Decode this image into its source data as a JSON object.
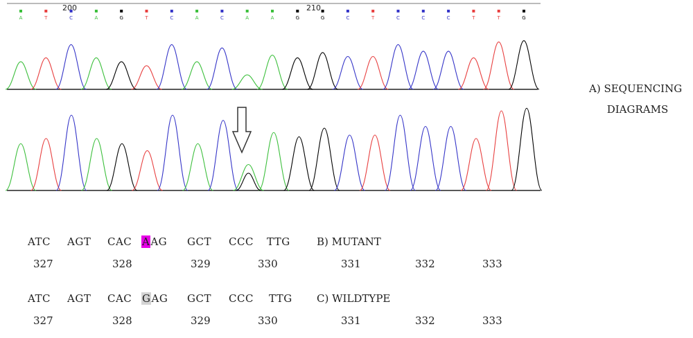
{
  "trace": {
    "top_ruler": {
      "positions": [
        "200",
        "210"
      ],
      "bases": [
        "A",
        "T",
        "C",
        "A",
        "G",
        "T",
        "C",
        "A",
        "C",
        "A",
        "A",
        "G",
        "G",
        "C",
        "T",
        "C",
        "C",
        "C",
        "T",
        "T",
        "G"
      ]
    },
    "base_colors": {
      "A": "#3cbf3c",
      "T": "#e84040",
      "C": "#3535c8",
      "G": "#000000"
    },
    "wildtype_trace_heights": [
      0.42,
      0.48,
      0.68,
      0.48,
      0.42,
      0.36,
      0.68,
      0.42,
      0.63,
      0.22,
      0.52,
      0.48,
      0.56,
      0.5,
      0.5,
      0.68,
      0.58,
      0.58,
      0.48,
      0.72,
      0.74
    ],
    "mutant_trace_heights": [
      0.54,
      0.6,
      0.87,
      0.6,
      0.54,
      0.46,
      0.87,
      0.54,
      0.81,
      0.3,
      0.67,
      0.62,
      0.72,
      0.64,
      0.64,
      0.87,
      0.74,
      0.74,
      0.6,
      0.92,
      0.95
    ],
    "mutant_secondary_peak": {
      "index": 9,
      "base": "G",
      "height": 0.2
    },
    "arrow_icon": "down-arrow-outline"
  },
  "labels": {
    "sequencing": [
      "A) SEQUENCING",
      "DIAGRAMS"
    ],
    "mutant": "B) MUTANT",
    "wildtype": "C) WILDTYPE"
  },
  "mutant": {
    "codons": [
      "ATC",
      "AGT",
      "CAC",
      "AAG",
      "GCT",
      "CCC",
      "TTG"
    ],
    "highlight_codon_index": 3,
    "highlight_color": "#e600e6",
    "positions": [
      "327",
      "328",
      "329",
      "330",
      "331",
      "332",
      "333"
    ]
  },
  "wildtype": {
    "codons": [
      "ATC",
      "AGT",
      "CAC",
      "GAG",
      "GCT",
      "CCC",
      "TTG"
    ],
    "highlight_codon_index": 3,
    "highlight_color": "#d4d4d4",
    "positions": [
      "327",
      "328",
      "329",
      "330",
      "331",
      "332",
      "333"
    ]
  }
}
